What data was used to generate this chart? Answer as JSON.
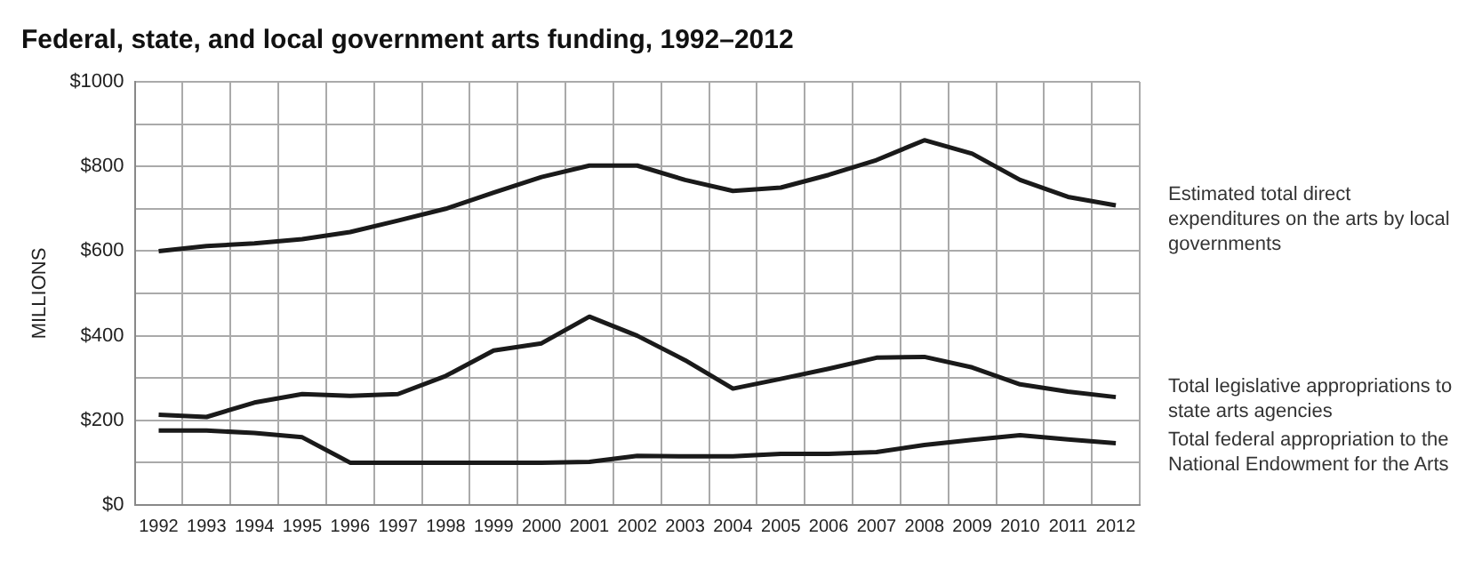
{
  "chart_data": {
    "type": "line",
    "title": "Federal, state, and local government arts funding, 1992–2012",
    "ylabel": "MILLIONS",
    "categories": [
      "1992",
      "1993",
      "1994",
      "1995",
      "1996",
      "1997",
      "1998",
      "1999",
      "2000",
      "2001",
      "2002",
      "2003",
      "2004",
      "2005",
      "2006",
      "2007",
      "2008",
      "2009",
      "2010",
      "2011",
      "2012"
    ],
    "series": [
      {
        "name": "Estimated total direct expenditures on the arts by local governments",
        "color": "#1a1a1a",
        "values": [
          600,
          612,
          618,
          628,
          645,
          672,
          700,
          738,
          775,
          802,
          802,
          768,
          742,
          750,
          780,
          815,
          862,
          830,
          768,
          728,
          708
        ]
      },
      {
        "name": "Total legislative appropriations to state arts agencies",
        "color": "#1a1a1a",
        "values": [
          213,
          208,
          242,
          262,
          258,
          262,
          305,
          365,
          382,
          445,
          400,
          342,
          275,
          298,
          322,
          348,
          350,
          325,
          285,
          268,
          255
        ]
      },
      {
        "name": "Total federal appropriation to the National Endowment for the Arts",
        "color": "#1a1a1a",
        "values": [
          176,
          176,
          170,
          160,
          100,
          100,
          100,
          100,
          100,
          102,
          116,
          115,
          115,
          121,
          121,
          125,
          142,
          154,
          165,
          155,
          146
        ]
      }
    ],
    "ylim": [
      0,
      1000
    ],
    "yticks": [
      {
        "value": 0,
        "label": "$0"
      },
      {
        "value": 100,
        "label": null
      },
      {
        "value": 200,
        "label": "$200"
      },
      {
        "value": 300,
        "label": null
      },
      {
        "value": 400,
        "label": "$400"
      },
      {
        "value": 500,
        "label": null
      },
      {
        "value": 600,
        "label": "$600"
      },
      {
        "value": 700,
        "label": null
      },
      {
        "value": 800,
        "label": "$800"
      },
      {
        "value": 900,
        "label": null
      },
      {
        "value": 1000,
        "label": "$1000"
      }
    ],
    "grid": true,
    "legend": false,
    "marker": "none",
    "line_style": "solid"
  }
}
